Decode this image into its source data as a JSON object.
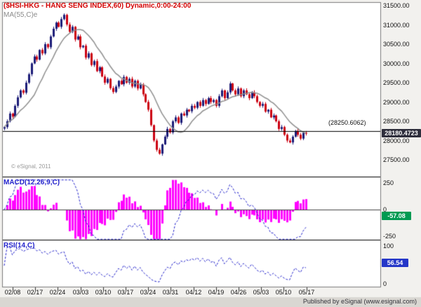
{
  "title": "($HSI-HKG - HANG SENG INDEX,60) Dynamic,0:00-24:00",
  "ma_label": "MA(55,C)e",
  "watermark": "© eSignal, 2011",
  "published": "Published by eSignal (www.esignal.com)",
  "price_axis_labels": [
    "31500.00",
    "31000.00",
    "30500.00",
    "30000.00",
    "29500.00",
    "29000.00",
    "28500.00",
    "28000.00",
    "27500.00"
  ],
  "level_label": "(28250.6062)",
  "price_badge": "28180.4723",
  "macd": {
    "label": "MACD(12,26,9,C)",
    "axis": [
      "250",
      "0",
      "-250"
    ],
    "badge": "-57.08"
  },
  "rsi": {
    "label": "RSI(14,C)",
    "axis": [
      "100",
      "0"
    ],
    "badge": "56.54"
  },
  "dates": [
    "02/08",
    "02/17",
    "02/24",
    "03/03",
    "03/10",
    "03/17",
    "03/24",
    "03/31",
    "04/12",
    "04/19",
    "04/26",
    "05/03",
    "05/10",
    "05/17"
  ],
  "colors": {
    "title": "#d40000",
    "candle_up": "#1b1b78",
    "candle_down": "#cc0011",
    "ma_line": "#8f8f8f",
    "macd_line": "#2323cc",
    "macd_hist": "#ff00ff",
    "rsi_line": "#2323cc",
    "price_badge_bg": "#2e2e3c",
    "macd_badge_bg": "#009a52",
    "rsi_badge_bg": "#2537c8",
    "level_line": "#000000"
  },
  "chart_data": {
    "type": "candlestick",
    "title": "($HSI-HKG - HANG SENG INDEX,60) Dynamic,0:00-24:00",
    "symbol": "$HSI-HKG",
    "interval_minutes": 60,
    "session": "0:00-24:00",
    "x_tick_labels": [
      "02/08",
      "02/17",
      "02/24",
      "03/03",
      "03/10",
      "03/17",
      "03/24",
      "03/31",
      "04/12",
      "04/19",
      "04/26",
      "05/03",
      "05/10",
      "05/17"
    ],
    "price_ticks": [
      31500,
      31000,
      30500,
      30000,
      29500,
      29000,
      28500,
      28000,
      27500
    ],
    "ylim": [
      27350,
      31620
    ],
    "level_line_value": 28250.6062,
    "last_price": 28180.4723,
    "ma_period": 55,
    "closes": [
      28350,
      28500,
      28700,
      28620,
      28900,
      29120,
      29300,
      29240,
      29500,
      29720,
      30000,
      30180,
      30100,
      30350,
      30260,
      30500,
      30420,
      30700,
      30900,
      31060,
      30950,
      31150,
      31260,
      31010,
      30820,
      30950,
      30620,
      30700,
      30420,
      30460,
      30150,
      30260,
      29960,
      30060,
      29800,
      29900,
      29660,
      29500,
      29600,
      29360,
      29260,
      29400,
      29550,
      29460,
      29650,
      29500,
      29600,
      29400,
      29550,
      29350,
      29450,
      29200,
      29000,
      28800,
      28400,
      28000,
      27760,
      27660,
      27900,
      28100,
      28300,
      28210,
      28500,
      28600,
      28460,
      28700,
      28650,
      28800,
      28760,
      28900,
      28850,
      29000,
      28900,
      29050,
      28950,
      29100,
      29000,
      29050,
      28900,
      29150,
      29300,
      29100,
      29250,
      29480,
      29300,
      29200,
      29350,
      29150,
      29300,
      29200,
      29100,
      29250,
      29150,
      29000,
      28900,
      28950,
      28750,
      28800,
      28600,
      28650,
      28500,
      28300,
      28350,
      28150,
      28000,
      27950,
      28100,
      28250,
      28150,
      28050,
      28200,
      28180
    ],
    "macd_panel": {
      "params": "MACD(12,26,9,C)",
      "axis_ticks": [
        250,
        0,
        -250
      ],
      "current": -57.08
    },
    "rsi_panel": {
      "params": "RSI(14,C)",
      "axis_ticks": [
        100,
        0
      ],
      "current": 56.54
    }
  }
}
